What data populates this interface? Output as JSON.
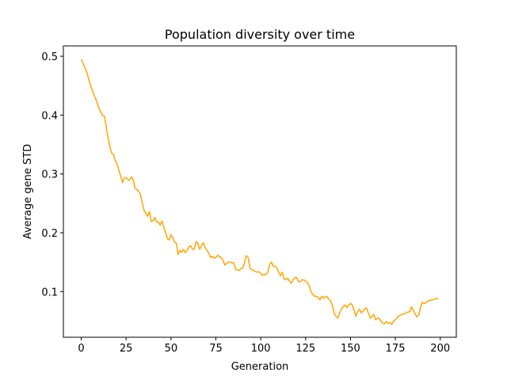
{
  "chart_data": {
    "type": "line",
    "title": "Population diversity over time",
    "xlabel": "Generation",
    "ylabel": "Average gene STD",
    "x": [
      0,
      1,
      2,
      3,
      4,
      5,
      6,
      7,
      8,
      9,
      10,
      11,
      12,
      13,
      14,
      15,
      16,
      17,
      18,
      19,
      20,
      21,
      22,
      23,
      24,
      25,
      26,
      27,
      28,
      29,
      30,
      31,
      32,
      33,
      34,
      35,
      36,
      37,
      38,
      39,
      40,
      41,
      42,
      43,
      44,
      45,
      46,
      47,
      48,
      49,
      50,
      51,
      52,
      53,
      54,
      55,
      56,
      57,
      58,
      59,
      60,
      61,
      62,
      63,
      64,
      65,
      66,
      67,
      68,
      69,
      70,
      71,
      72,
      73,
      74,
      75,
      76,
      77,
      78,
      79,
      80,
      81,
      82,
      83,
      84,
      85,
      86,
      87,
      88,
      89,
      90,
      91,
      92,
      93,
      94,
      95,
      96,
      97,
      98,
      99,
      100,
      101,
      102,
      103,
      104,
      105,
      106,
      107,
      108,
      109,
      110,
      111,
      112,
      113,
      114,
      115,
      116,
      117,
      118,
      119,
      120,
      121,
      122,
      123,
      124,
      125,
      126,
      127,
      128,
      129,
      130,
      131,
      132,
      133,
      134,
      135,
      136,
      137,
      138,
      139,
      140,
      141,
      142,
      143,
      144,
      145,
      146,
      147,
      148,
      149,
      150,
      151,
      152,
      153,
      154,
      155,
      156,
      157,
      158,
      159,
      160,
      161,
      162,
      163,
      164,
      165,
      166,
      167,
      168,
      169,
      170,
      171,
      172,
      173,
      174,
      175,
      176,
      177,
      178,
      179,
      180,
      181,
      182,
      183,
      184,
      185,
      186,
      187,
      188,
      189,
      190,
      191,
      192,
      193,
      194,
      195,
      196,
      197,
      198,
      199
    ],
    "series": [
      {
        "color": "#ffa500",
        "values": [
          0.495,
          0.488,
          0.481,
          0.474,
          0.463,
          0.452,
          0.444,
          0.435,
          0.428,
          0.42,
          0.41,
          0.404,
          0.399,
          0.398,
          0.378,
          0.36,
          0.346,
          0.335,
          0.333,
          0.322,
          0.317,
          0.306,
          0.296,
          0.285,
          0.293,
          0.294,
          0.29,
          0.29,
          0.295,
          0.29,
          0.275,
          0.274,
          0.27,
          0.265,
          0.25,
          0.238,
          0.233,
          0.228,
          0.236,
          0.219,
          0.22,
          0.226,
          0.218,
          0.218,
          0.213,
          0.22,
          0.21,
          0.2,
          0.19,
          0.188,
          0.197,
          0.192,
          0.184,
          0.182,
          0.163,
          0.17,
          0.167,
          0.172,
          0.166,
          0.17,
          0.176,
          0.178,
          0.172,
          0.172,
          0.185,
          0.182,
          0.172,
          0.178,
          0.183,
          0.175,
          0.17,
          0.166,
          0.158,
          0.16,
          0.157,
          0.158,
          0.162,
          0.159,
          0.158,
          0.153,
          0.145,
          0.148,
          0.15,
          0.15,
          0.149,
          0.149,
          0.138,
          0.137,
          0.136,
          0.139,
          0.14,
          0.15,
          0.161,
          0.158,
          0.14,
          0.137,
          0.136,
          0.134,
          0.133,
          0.134,
          0.13,
          0.128,
          0.129,
          0.129,
          0.133,
          0.147,
          0.15,
          0.143,
          0.143,
          0.14,
          0.133,
          0.127,
          0.133,
          0.122,
          0.12,
          0.123,
          0.118,
          0.114,
          0.12,
          0.124,
          0.124,
          0.117,
          0.117,
          0.12,
          0.12,
          0.118,
          0.115,
          0.11,
          0.1,
          0.095,
          0.092,
          0.092,
          0.09,
          0.086,
          0.092,
          0.089,
          0.092,
          0.091,
          0.087,
          0.084,
          0.076,
          0.062,
          0.058,
          0.055,
          0.064,
          0.071,
          0.075,
          0.077,
          0.073,
          0.077,
          0.08,
          0.077,
          0.068,
          0.058,
          0.066,
          0.07,
          0.064,
          0.067,
          0.071,
          0.072,
          0.063,
          0.055,
          0.058,
          0.061,
          0.052,
          0.055,
          0.054,
          0.05,
          0.046,
          0.045,
          0.049,
          0.046,
          0.047,
          0.044,
          0.05,
          0.052,
          0.056,
          0.059,
          0.06,
          0.062,
          0.062,
          0.064,
          0.065,
          0.066,
          0.074,
          0.068,
          0.062,
          0.057,
          0.06,
          0.073,
          0.082,
          0.08,
          0.081,
          0.084,
          0.085,
          0.086,
          0.086,
          0.088,
          0.088,
          0.088
        ]
      }
    ],
    "xlim": [
      -9.95,
      208.95
    ],
    "ylim": [
      0.0224,
      0.5176
    ],
    "xticks": [
      0,
      25,
      50,
      75,
      100,
      125,
      150,
      175,
      200
    ],
    "yticks": [
      0.1,
      0.2,
      0.3,
      0.4,
      0.5
    ]
  }
}
